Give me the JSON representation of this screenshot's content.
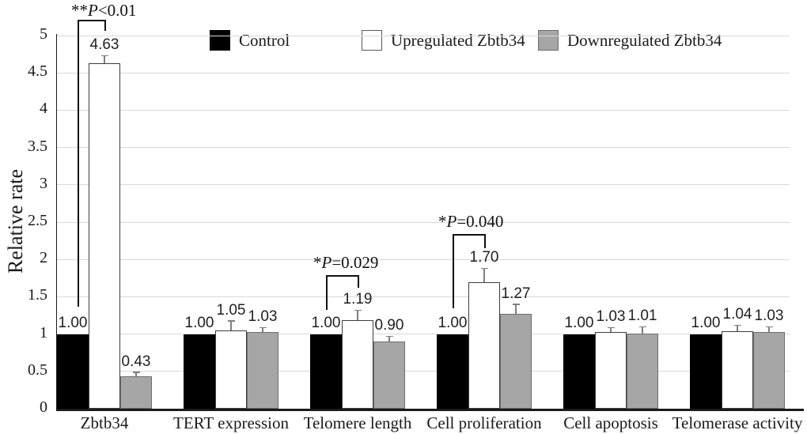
{
  "chart_data": {
    "type": "bar",
    "title": "",
    "ylabel": "Relative rate",
    "xlabel": "",
    "ylim": [
      0,
      5
    ],
    "yticks": [
      "0",
      "0.5",
      "1",
      "1.5",
      "2",
      "2.5",
      "3",
      "3.5",
      "4",
      "4.5",
      "5"
    ],
    "grid": true,
    "legend_position": "top",
    "categories": [
      "Zbtb34",
      "TERT expression",
      "Telomere length",
      "Cell proliferation",
      "Cell apoptosis",
      "Telomerase activity"
    ],
    "series": [
      {
        "name": "Control",
        "key": "control",
        "fill": "#000000",
        "border": "#000000",
        "values": [
          "1.00",
          "1.00",
          "1.00",
          "1.00",
          "1.00",
          "1.00"
        ],
        "errors": [
          0,
          0,
          0,
          0,
          0,
          0
        ]
      },
      {
        "name": "Upregulated Zbtb34",
        "key": "upregulated",
        "fill": "#ffffff",
        "border": "#3d3d3d",
        "values": [
          "4.63",
          "1.05",
          "1.19",
          "1.70",
          "1.03",
          "1.04"
        ],
        "errors": [
          0.09,
          0.12,
          0.12,
          0.17,
          0.05,
          0.07
        ]
      },
      {
        "name": "Downregulated Zbtb34",
        "key": "downregulated",
        "fill": "#a6a6a6",
        "border": "#6e6e6e",
        "values": [
          "0.43",
          "1.03",
          "0.90",
          "1.27",
          "1.01",
          "1.03"
        ],
        "errors": [
          0.05,
          0.05,
          0.06,
          0.12,
          0.08,
          0.06
        ]
      }
    ],
    "annotations": [
      {
        "label": "**P<0.01",
        "stars": "**",
        "p": "P",
        "rest": "<0.01",
        "group": "Zbtb34",
        "between": [
          "Control",
          "Upregulated Zbtb34"
        ]
      },
      {
        "label": "*P=0.029",
        "stars": "*",
        "p": "P",
        "rest": "=0.029",
        "group": "Telomere length",
        "between": [
          "Control",
          "Upregulated Zbtb34"
        ]
      },
      {
        "label": "*P=0.040",
        "stars": "*",
        "p": "P",
        "rest": "=0.040",
        "group": "Cell proliferation",
        "between": [
          "Control",
          "Upregulated Zbtb34"
        ]
      }
    ]
  }
}
